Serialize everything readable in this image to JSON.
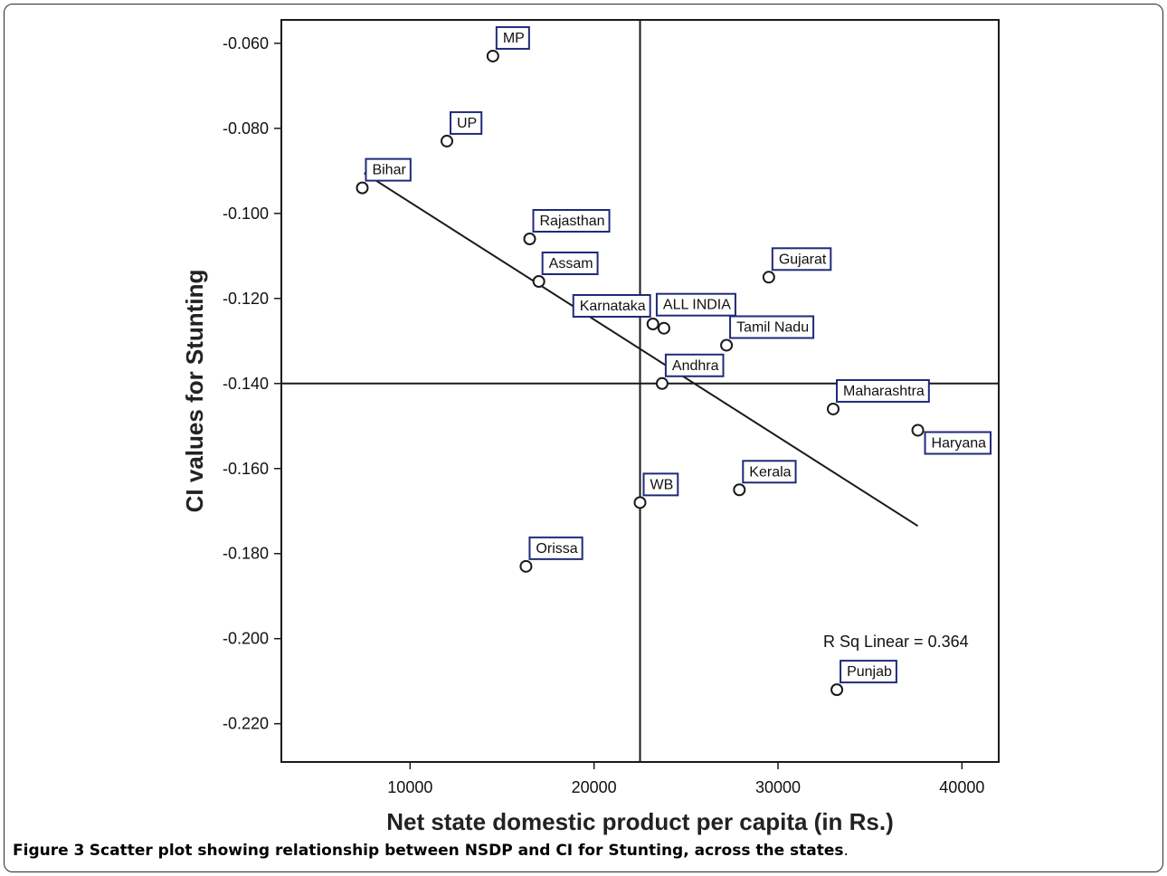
{
  "caption": {
    "label": "Figure 3",
    "text": "Scatter plot showing relationship between NSDP and CI for Stunting, across the states",
    "end": "."
  },
  "chart_data": {
    "type": "scatter",
    "xlabel": "Net state domestic product per capita (in Rs.)",
    "ylabel": "CI values for Stunting",
    "xlim": [
      3000,
      42000
    ],
    "ylim": [
      -0.229,
      -0.0545
    ],
    "xticks": [
      10000,
      20000,
      30000,
      40000
    ],
    "xtick_labels": [
      "10000",
      "20000",
      "30000",
      "40000"
    ],
    "yticks": [
      -0.06,
      -0.08,
      -0.1,
      -0.12,
      -0.14,
      -0.16,
      -0.18,
      -0.2,
      -0.22
    ],
    "ytick_labels": [
      "-0.060",
      "-0.080",
      "-0.100",
      "-0.120",
      "-0.140",
      "-0.160",
      "-0.180",
      "-0.200",
      "-0.220"
    ],
    "reference_lines": {
      "x": 22500,
      "y": -0.14
    },
    "fit_line": {
      "x": [
        7500,
        37600
      ],
      "y": [
        -0.0905,
        -0.1735
      ]
    },
    "annotation": "R Sq Linear = 0.364",
    "marker": "open-circle",
    "label_border_color": "#1f2a7a",
    "points": [
      {
        "label": "MP",
        "x": 14500,
        "y": -0.063
      },
      {
        "label": "UP",
        "x": 12000,
        "y": -0.083
      },
      {
        "label": "Bihar",
        "x": 7400,
        "y": -0.094
      },
      {
        "label": "Rajasthan",
        "x": 16500,
        "y": -0.106
      },
      {
        "label": "Assam",
        "x": 17000,
        "y": -0.116
      },
      {
        "label": "Gujarat",
        "x": 29500,
        "y": -0.115
      },
      {
        "label": "ALL INDIA",
        "x": 23800,
        "y": -0.127
      },
      {
        "label": "Karnataka",
        "x": 23200,
        "y": -0.126
      },
      {
        "label": "Tamil Nadu",
        "x": 27200,
        "y": -0.131
      },
      {
        "label": "Andhra",
        "x": 23700,
        "y": -0.14
      },
      {
        "label": "Maharashtra",
        "x": 33000,
        "y": -0.146
      },
      {
        "label": "Haryana",
        "x": 37600,
        "y": -0.151
      },
      {
        "label": "Kerala",
        "x": 27900,
        "y": -0.165
      },
      {
        "label": "WB",
        "x": 22500,
        "y": -0.168
      },
      {
        "label": "Orissa",
        "x": 16300,
        "y": -0.183
      },
      {
        "label": "Punjab",
        "x": 33200,
        "y": -0.212
      }
    ]
  }
}
